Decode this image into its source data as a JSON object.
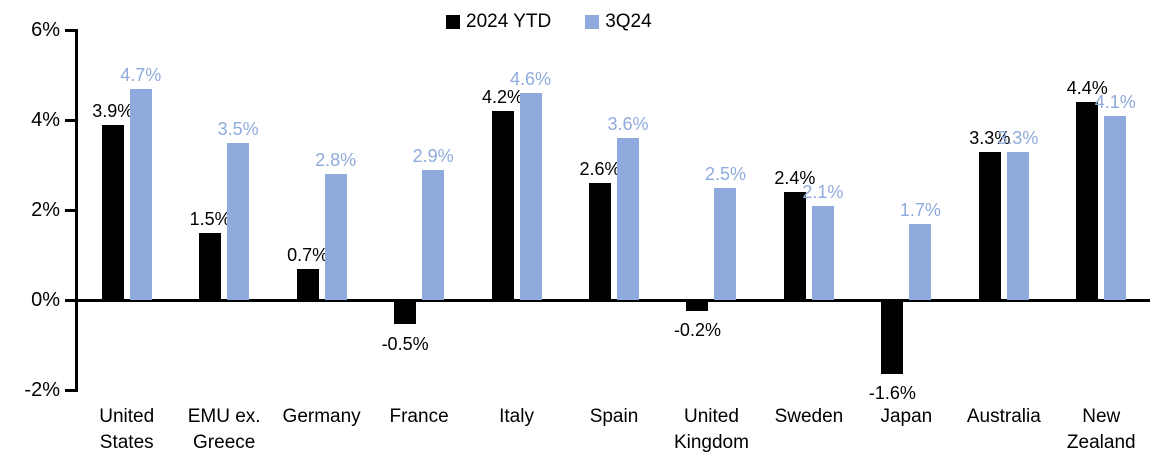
{
  "chart_data": {
    "type": "bar",
    "title": "",
    "categories": [
      "United\nStates",
      "EMU ex.\nGreece",
      "Germany",
      "France",
      "Italy",
      "Spain",
      "United\nKingdom",
      "Sweden",
      "Japan",
      "Australia",
      "New\nZealand"
    ],
    "series": [
      {
        "name": "2024 YTD",
        "color": "#000000",
        "label_color": "#000000",
        "values": [
          3.9,
          1.5,
          0.7,
          -0.5,
          4.2,
          2.6,
          -0.2,
          2.4,
          -1.6,
          3.3,
          4.4
        ]
      },
      {
        "name": "3Q24",
        "color": "#8FAADC",
        "label_color": "#8FAADC",
        "values": [
          4.7,
          3.5,
          2.8,
          2.9,
          4.6,
          3.6,
          2.5,
          2.1,
          1.7,
          3.3,
          4.1
        ]
      }
    ],
    "data_labels": {
      "series_0": [
        "3.9%",
        "1.5%",
        "0.7%",
        "-0.5%",
        "4.2%",
        "2.6%",
        "-0.2%",
        "2.4%",
        "-1.6%",
        "3.3%",
        "4.4%"
      ],
      "series_1": [
        "4.7%",
        "3.5%",
        "2.8%",
        "2.9%",
        "4.6%",
        "3.6%",
        "2.5%",
        "2.1%",
        "1.7%",
        "3.3%",
        "4.1%"
      ]
    },
    "ylabel": "",
    "xlabel": "",
    "ylim": [
      -2,
      6
    ],
    "y_ticks": [
      "6%",
      "4%",
      "2%",
      "0%",
      "-2%"
    ],
    "y_tick_values": [
      6,
      4,
      2,
      0,
      -2
    ],
    "value_suffix": "%",
    "grid": false,
    "legend_position": "top-center",
    "axis_color": "#000000",
    "background_color": "#FFFFFF"
  }
}
